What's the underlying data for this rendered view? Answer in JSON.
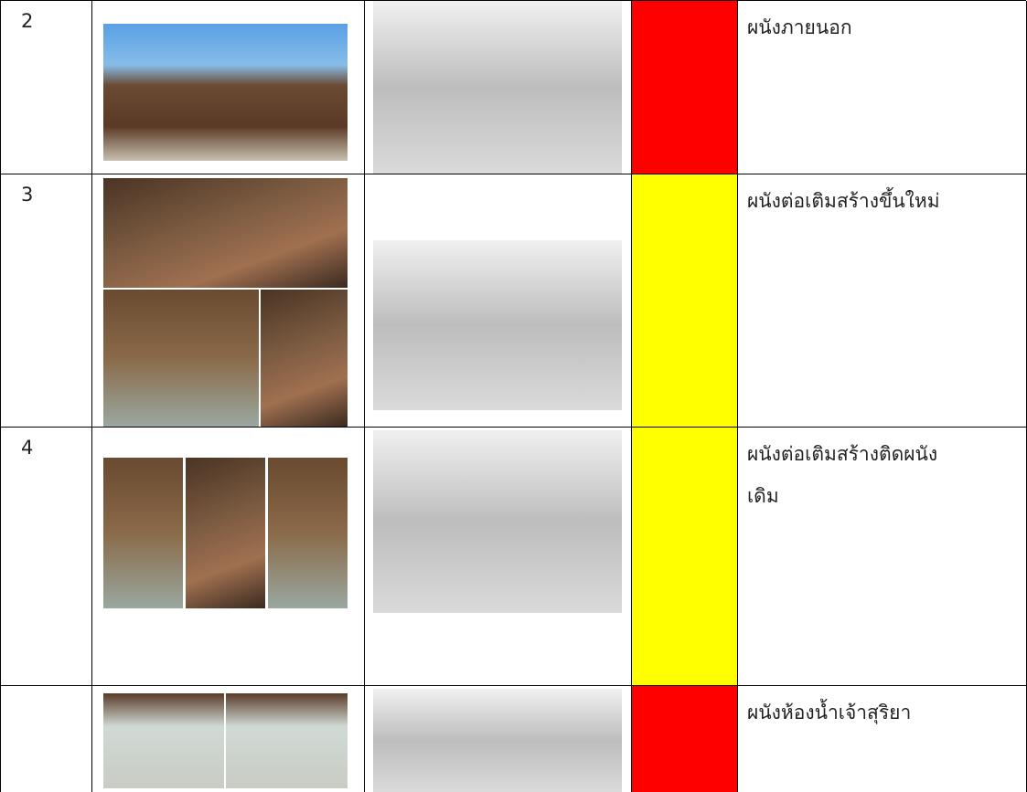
{
  "table": {
    "rows": [
      {
        "number": "2",
        "color": "#ff0000",
        "label": [
          "ผนังภายนอก"
        ]
      },
      {
        "number": "3",
        "color": "#ffff00",
        "label": [
          "ผนังต่อเติมสร้างขึ้นใหม่"
        ]
      },
      {
        "number": "4",
        "color": "#ffff00",
        "label": [
          "ผนังต่อเติมสร้างติดผนัง",
          "เดิม"
        ]
      },
      {
        "number": null,
        "color": "#ff0000",
        "label": [
          "ผนังห้องน้ำเจ้าสุริยา"
        ]
      }
    ]
  }
}
